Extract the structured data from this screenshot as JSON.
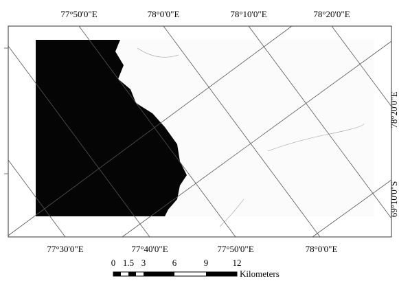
{
  "map": {
    "top_labels": [
      "77°50'0\"E",
      "78°0'0\"E",
      "78°10'0\"E",
      "78°20'0\"E"
    ],
    "bottom_labels": [
      "77°30'0\"E",
      "77°40'0\"E",
      "77°50'0\"E",
      "78°0'0\"E"
    ],
    "right_labels": [
      "78°20'0\"E",
      "69°10'0\"S"
    ],
    "scale_bar": {
      "ticks": [
        "0",
        "1.5",
        "3",
        "6",
        "9",
        "12"
      ],
      "unit": "Kilometers"
    }
  }
}
